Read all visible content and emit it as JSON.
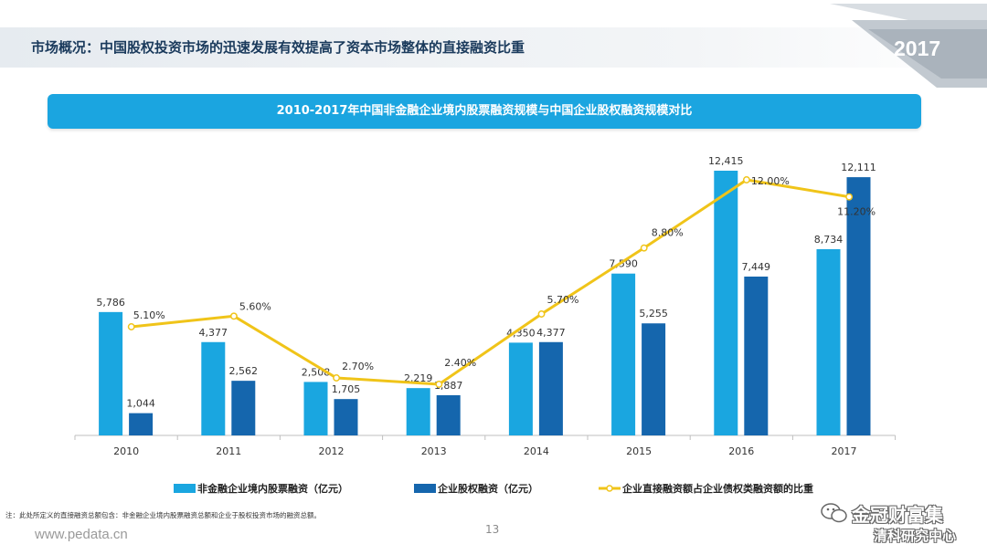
{
  "header": {
    "title": "市场概况：中国股权投资市场的迅速发展有效提高了资本市场整体的直接融资比重",
    "year_badge": "2017"
  },
  "colors": {
    "light_bar": "#1aa6e0",
    "dark_bar": "#1566ad",
    "line": "#f0c419",
    "banner": "#1ba5e0",
    "title_text": "#1a3a5c"
  },
  "chart_data": {
    "type": "bar",
    "title": "2010-2017年中国非金融企业境内股票融资规模与中国企业股权融资规模对比",
    "categories": [
      "2010",
      "2011",
      "2012",
      "2013",
      "2014",
      "2015",
      "2016",
      "2017"
    ],
    "series": [
      {
        "name": "非金融企业境内股票融资（亿元）",
        "kind": "bar",
        "values": [
          5786,
          4377,
          2508,
          2219,
          4350,
          7590,
          12415,
          8734
        ],
        "labels": [
          "5,786",
          "4,377",
          "2,508",
          "2,219",
          "4,350",
          "7,590",
          "12,415",
          "8,734"
        ]
      },
      {
        "name": "企业股权融资（亿元）",
        "kind": "bar",
        "values": [
          1044,
          2562,
          1705,
          1887,
          4377,
          5255,
          7449,
          12111
        ],
        "labels": [
          "1,044",
          "2,562",
          "1,705",
          "1,887",
          "4,377",
          "5,255",
          "7,449",
          "12,111"
        ]
      },
      {
        "name": "企业直接融资额占企业债权类融资额的比重",
        "kind": "line",
        "values": [
          5.1,
          5.6,
          2.7,
          2.4,
          5.7,
          8.8,
          12.0,
          11.2
        ],
        "labels": [
          "5.10%",
          "5.60%",
          "2.70%",
          "2.40%",
          "5.70%",
          "8.80%",
          "12.00%",
          "11.20%"
        ]
      }
    ],
    "legend": "bottom",
    "grid": false
  },
  "footnote": "注：此处所定义的直接融资总额包含：非金融企业境内股票融资总额和企业于股权投资市场的融资总额。",
  "footer": {
    "url": "www.pedata.cn",
    "page_number": "13"
  },
  "watermark": {
    "line1": "金冠财富集",
    "line2": "清科研究中心",
    "icon": "wechat-icon"
  }
}
